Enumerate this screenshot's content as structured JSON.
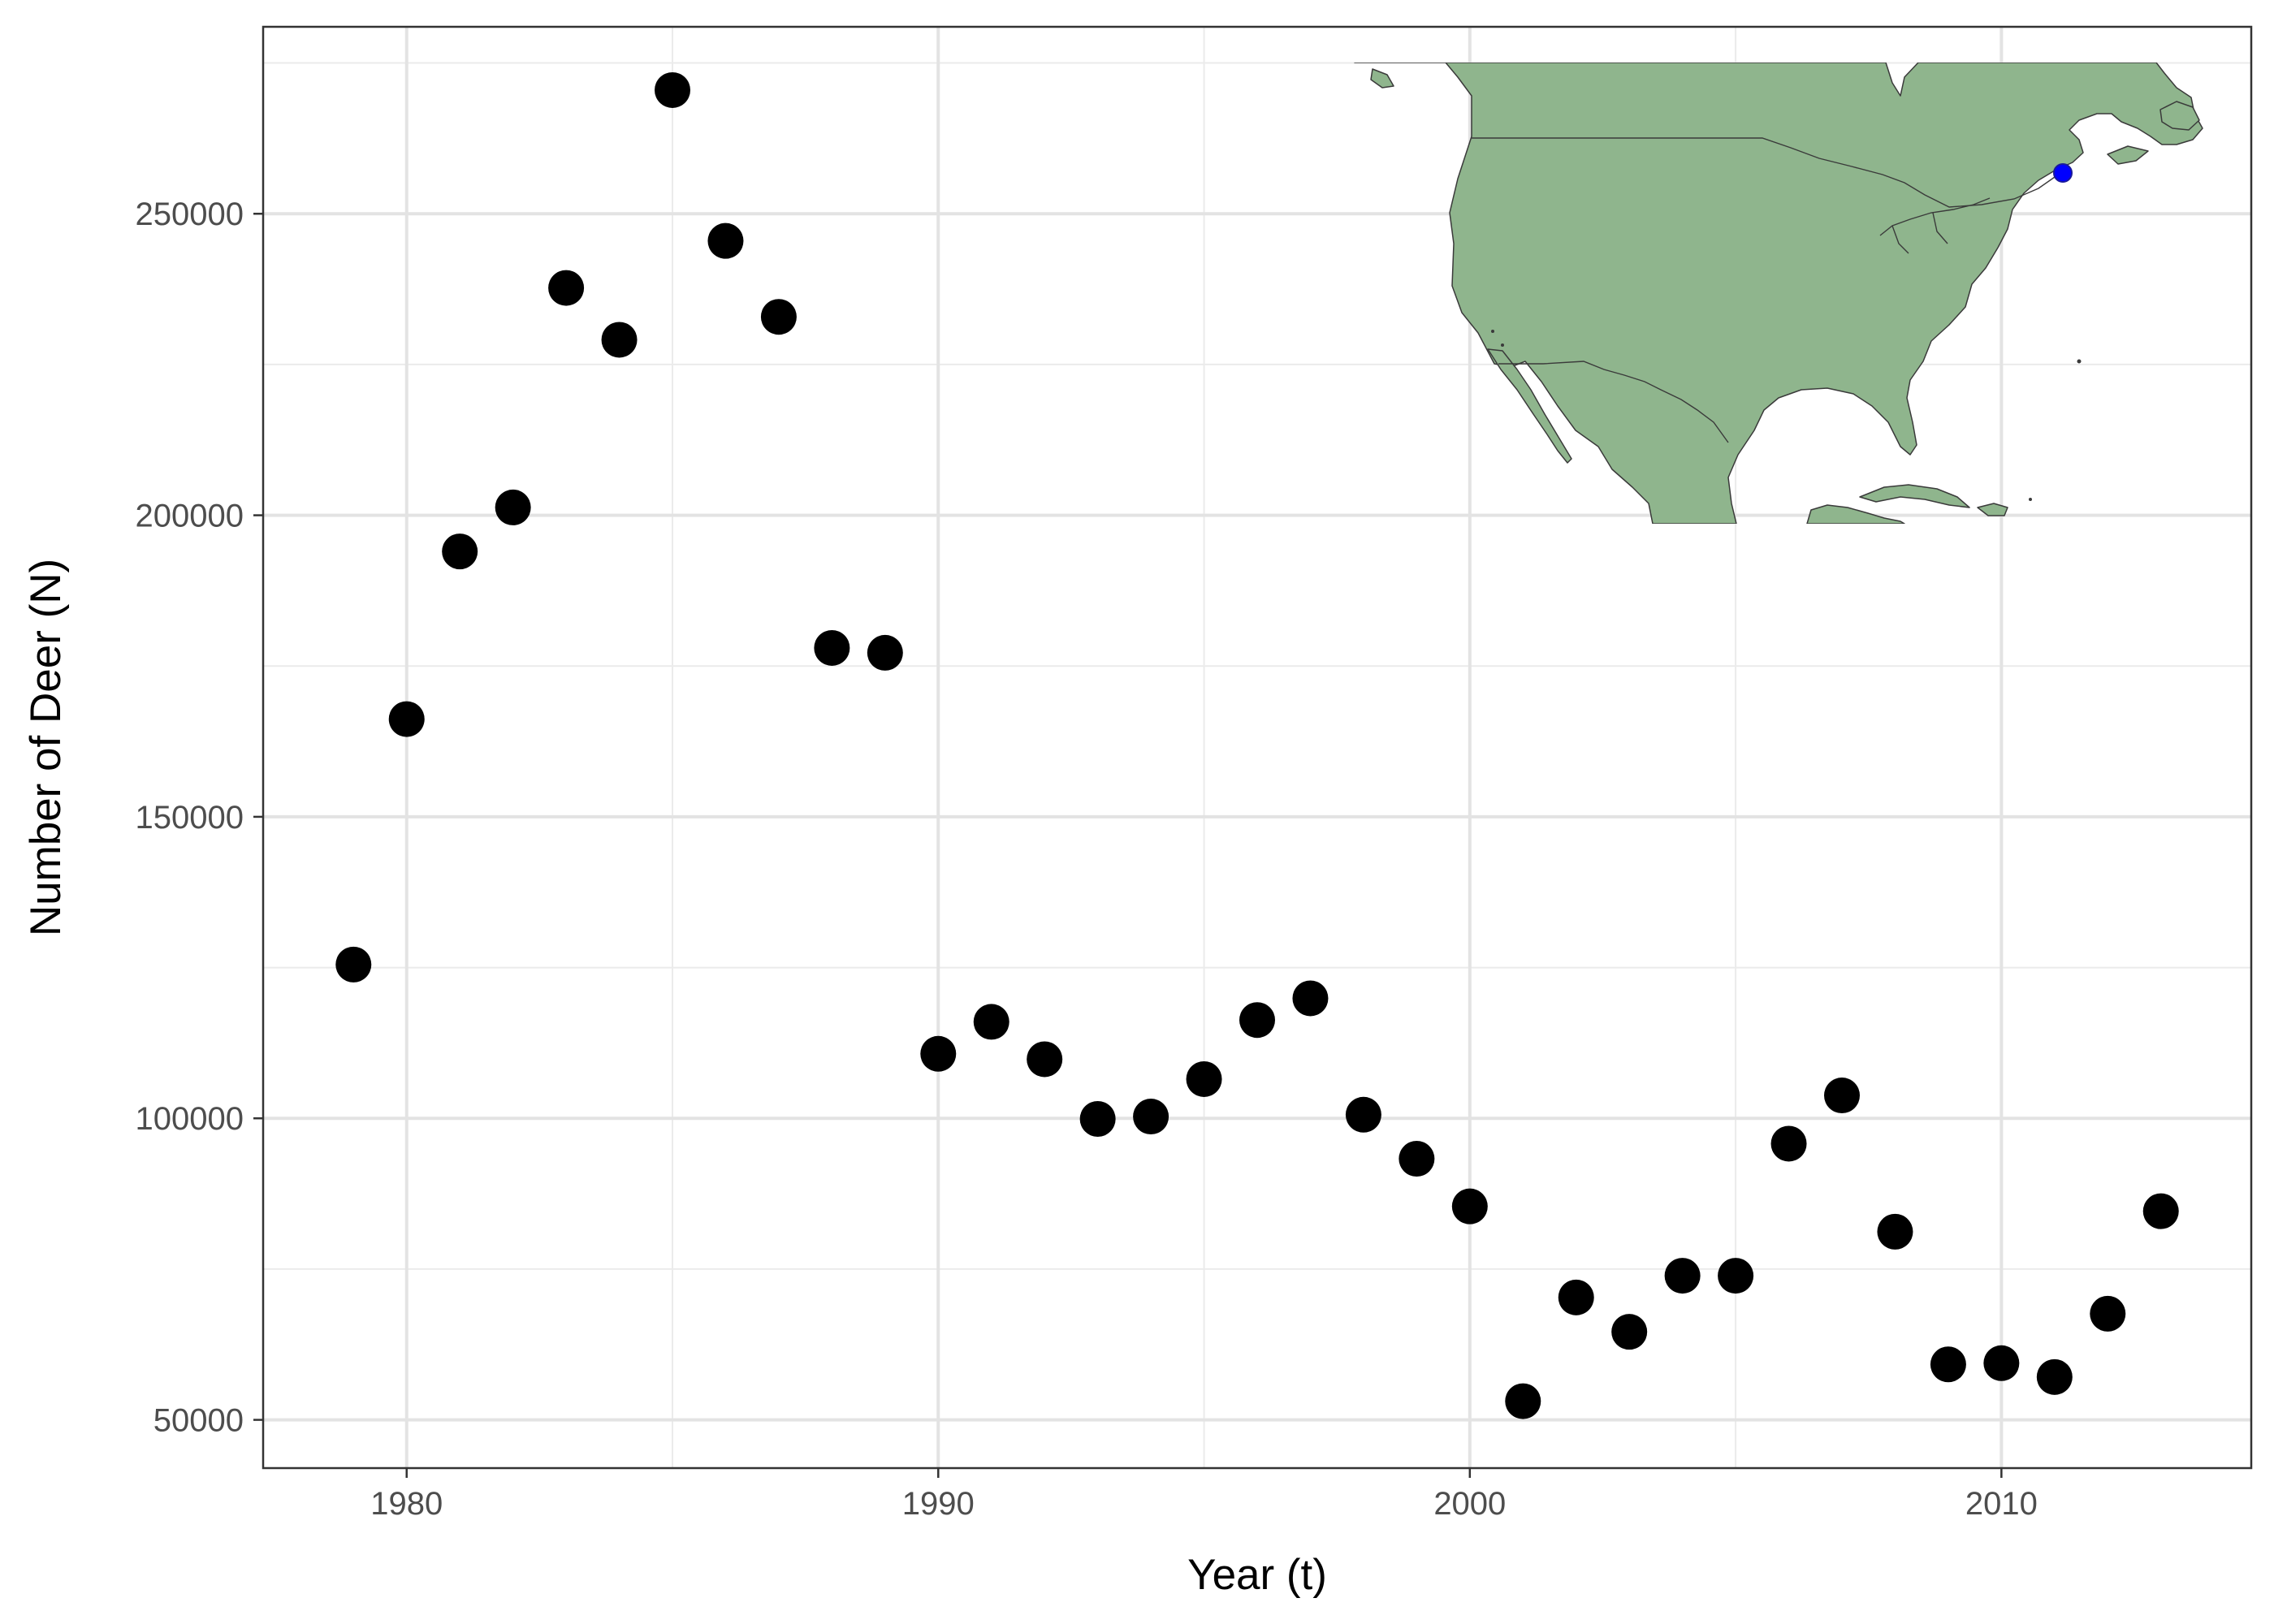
{
  "chart_data": {
    "type": "scatter",
    "xlabel": "Year (t)",
    "ylabel": "Number of Deer (N)",
    "xlim": [
      1977.3,
      2014.7
    ],
    "ylim": [
      42000,
      281000
    ],
    "x_ticks": [
      1980,
      1990,
      2000,
      2010
    ],
    "y_ticks": [
      50000,
      100000,
      150000,
      200000,
      250000
    ],
    "grid": true,
    "colors": {
      "points": "#000000",
      "map_land": "#8fb58d",
      "map_marker": "#0000ff"
    },
    "inset": {
      "type": "map",
      "region": "North America",
      "marker_location": "Anticosti Island, Quebec"
    },
    "series": [
      {
        "x": [
          1979,
          1980,
          1981,
          1982,
          1983,
          1984,
          1985,
          1986,
          1987,
          1988,
          1989,
          1990,
          1991,
          1992,
          1993,
          1994,
          1995,
          1996,
          1997,
          1998,
          1999,
          2000,
          2001,
          2002,
          2003,
          2004,
          2005,
          2006,
          2007,
          2008,
          2009,
          2010,
          2011,
          2012,
          2013
        ],
        "y": [
          125500,
          166200,
          194000,
          201300,
          237700,
          229100,
          270500,
          245500,
          232900,
          178000,
          177200,
          110700,
          116000,
          109800,
          99900,
          100300,
          106500,
          116300,
          119900,
          100600,
          93300,
          85400,
          53100,
          70300,
          64600,
          73900,
          73900,
          95800,
          103800,
          81200,
          59200,
          59400,
          57100,
          67600,
          84600
        ]
      }
    ]
  }
}
